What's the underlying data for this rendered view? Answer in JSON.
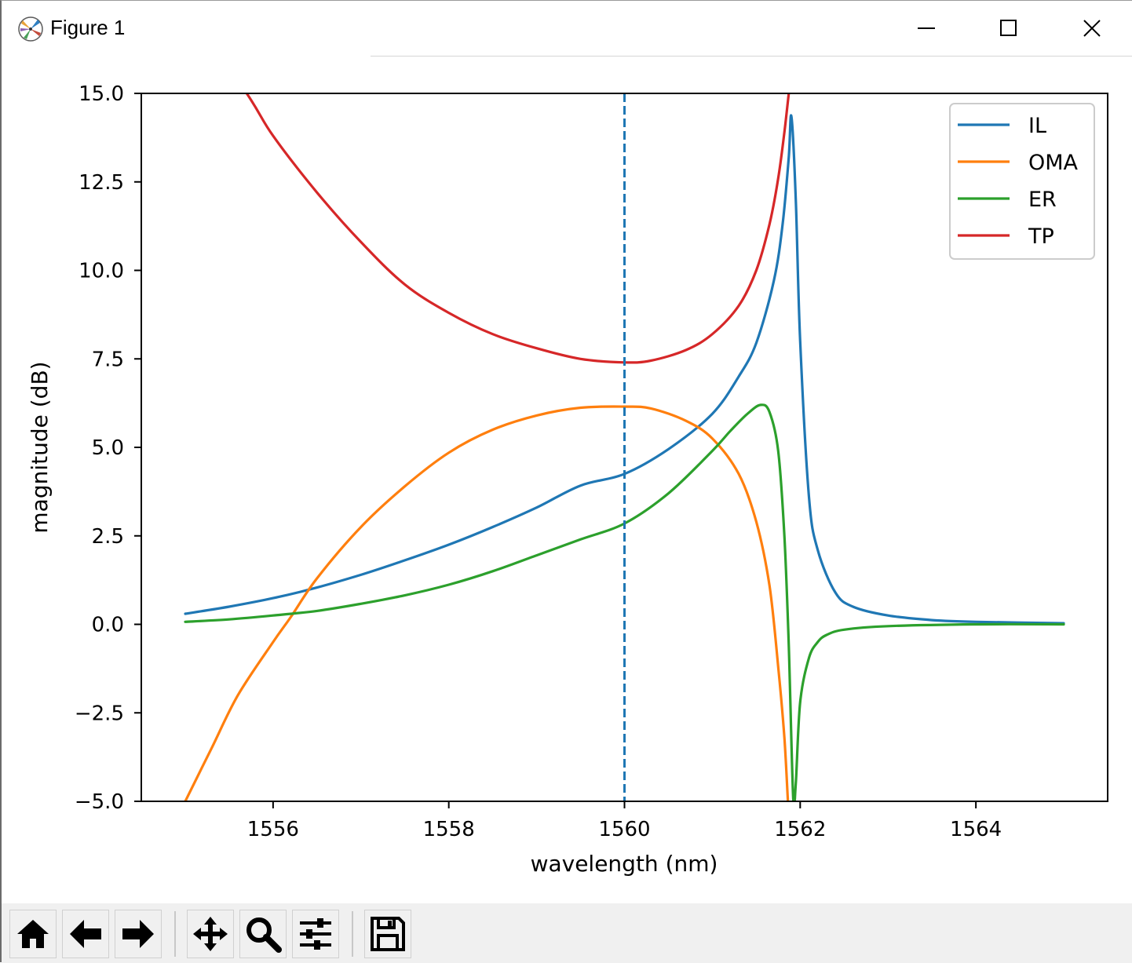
{
  "window": {
    "title": "Figure 1",
    "icons": [
      "matplotlib-icon",
      "minimize-icon",
      "maximize-icon",
      "close-icon"
    ]
  },
  "toolbar": {
    "buttons": [
      "home-icon",
      "back-icon",
      "forward-icon",
      "pan-icon",
      "zoom-icon",
      "configure-subplots-icon",
      "save-icon"
    ]
  },
  "chart_data": {
    "type": "line",
    "title": "",
    "xlabel": "wavelength (nm)",
    "ylabel": "magnitude (dB)",
    "xlim": [
      1554.5,
      1565.5
    ],
    "ylim": [
      -5.0,
      15.0
    ],
    "xticks": [
      1556,
      1558,
      1560,
      1562,
      1564
    ],
    "xtick_labels": [
      "1556",
      "1558",
      "1560",
      "1562",
      "1564"
    ],
    "yticks": [
      -5.0,
      -2.5,
      0.0,
      2.5,
      5.0,
      7.5,
      10.0,
      12.5,
      15.0
    ],
    "ytick_labels": [
      "−5.0",
      "−2.5",
      "0.0",
      "2.5",
      "5.0",
      "7.5",
      "10.0",
      "12.5",
      "15.0"
    ],
    "grid": false,
    "legend_position": "upper right",
    "vline": {
      "x": 1560.0,
      "style": "dashed",
      "color": "#1f77b4"
    },
    "series": [
      {
        "name": "IL",
        "color": "#1f77b4",
        "x": [
          1555.0,
          1555.5,
          1556.0,
          1556.5,
          1557.0,
          1557.5,
          1558.0,
          1558.5,
          1559.0,
          1559.5,
          1560.0,
          1560.5,
          1561.0,
          1561.3,
          1561.5,
          1561.7,
          1561.8,
          1561.87,
          1561.9,
          1561.95,
          1562.0,
          1562.1,
          1562.2,
          1562.4,
          1562.6,
          1563.0,
          1563.5,
          1564.0,
          1565.0
        ],
        "y": [
          0.3,
          0.5,
          0.74,
          1.04,
          1.4,
          1.81,
          2.25,
          2.75,
          3.3,
          3.92,
          4.25,
          4.95,
          5.95,
          7.0,
          7.95,
          9.7,
          11.3,
          13.2,
          14.35,
          12.0,
          8.0,
          3.6,
          2.1,
          0.9,
          0.5,
          0.25,
          0.12,
          0.07,
          0.03
        ]
      },
      {
        "name": "OMA",
        "color": "#ff7f0e",
        "x": [
          1555.0,
          1555.3,
          1555.6,
          1556.0,
          1556.2,
          1556.5,
          1557.0,
          1557.5,
          1558.0,
          1558.5,
          1559.0,
          1559.5,
          1560.0,
          1560.3,
          1560.7,
          1561.0,
          1561.3,
          1561.5,
          1561.65,
          1561.75,
          1561.82,
          1561.86
        ],
        "y": [
          -5.0,
          -3.5,
          -2.0,
          -0.5,
          0.2,
          1.3,
          2.75,
          3.9,
          4.85,
          5.5,
          5.9,
          6.12,
          6.15,
          6.1,
          5.75,
          5.25,
          4.25,
          2.9,
          1.1,
          -1.2,
          -3.2,
          -5.0
        ]
      },
      {
        "name": "ER",
        "color": "#2ca02c",
        "x": [
          1555.0,
          1555.5,
          1556.0,
          1556.5,
          1557.0,
          1557.5,
          1558.0,
          1558.5,
          1559.0,
          1559.5,
          1560.0,
          1560.5,
          1561.0,
          1561.2,
          1561.4,
          1561.55,
          1561.65,
          1561.75,
          1561.82,
          1561.87,
          1561.92,
          1561.95,
          1562.0,
          1562.1,
          1562.2,
          1562.3,
          1562.5,
          1563.0,
          1564.0,
          1565.0
        ],
        "y": [
          0.07,
          0.14,
          0.25,
          0.38,
          0.58,
          0.82,
          1.12,
          1.5,
          1.95,
          2.4,
          2.85,
          3.7,
          4.9,
          5.45,
          5.95,
          6.2,
          6.0,
          4.9,
          2.5,
          -0.6,
          -4.9,
          -4.5,
          -2.2,
          -0.95,
          -0.5,
          -0.3,
          -0.15,
          -0.05,
          0.0,
          0.0
        ]
      },
      {
        "name": "TP",
        "color": "#d62728",
        "x": [
          1555.0,
          1555.7,
          1556.0,
          1556.5,
          1557.0,
          1557.5,
          1558.0,
          1558.5,
          1559.0,
          1559.5,
          1560.0,
          1560.3,
          1560.7,
          1561.0,
          1561.3,
          1561.5,
          1561.65,
          1561.75,
          1561.82,
          1561.87
        ],
        "y": [
          17.5,
          15.0,
          13.8,
          12.2,
          10.8,
          9.6,
          8.8,
          8.2,
          7.8,
          7.5,
          7.4,
          7.45,
          7.75,
          8.2,
          9.0,
          10.0,
          11.3,
          12.6,
          13.9,
          15.0
        ]
      }
    ]
  }
}
